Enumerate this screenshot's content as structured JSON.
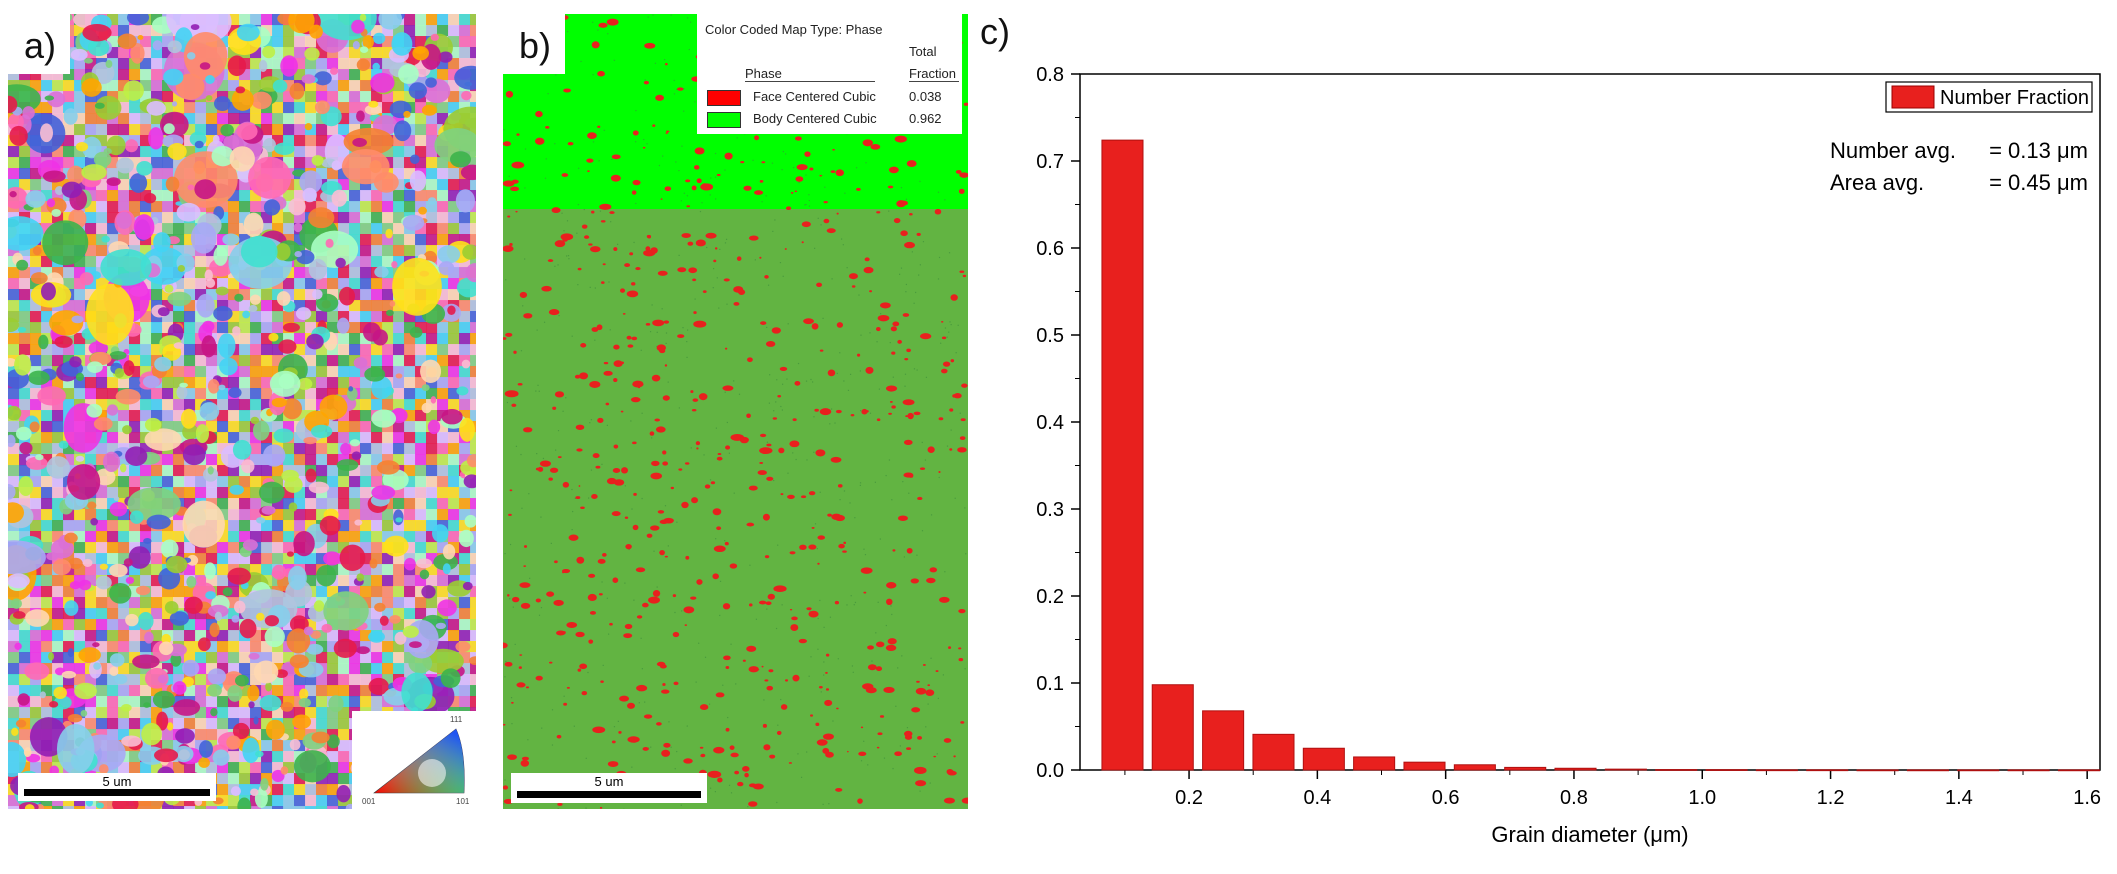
{
  "panels": {
    "a": {
      "letter": "a)",
      "scalebar_label": "5 um",
      "ipf_labels": {
        "top": "111",
        "left": "001",
        "right": "101"
      },
      "grain_palette": [
        "#e6194b",
        "#f58231",
        "#ffe119",
        "#bfef45",
        "#3cb44b",
        "#42d4f4",
        "#4363d8",
        "#911eb4",
        "#f032e6",
        "#fabed4",
        "#ffd8b1",
        "#aaffc3",
        "#dcbeff",
        "#a9a9f5",
        "#ff8c69",
        "#7fd17f",
        "#ff69b4",
        "#87ceeb",
        "#ffa500",
        "#9acd32",
        "#40e0d0",
        "#da70d6",
        "#b0c4de",
        "#c71585"
      ]
    },
    "b": {
      "letter": "b)",
      "scalebar_label": "5 um",
      "legend": {
        "title": "Color Coded Map Type: Phase",
        "col_phase": "Phase",
        "col_total": "Total",
        "col_fraction": "Fraction",
        "rows": [
          {
            "name": "Face Centered Cubic",
            "value": "0.038",
            "color": "#ff0000"
          },
          {
            "name": "Body Centered Cubic",
            "value": "0.962",
            "color": "#00ff00"
          }
        ]
      },
      "colors": {
        "bcc_bright": "#00ff00",
        "bcc_dim": "#62b442",
        "fcc": "#e8201e"
      }
    },
    "c": {
      "letter": "c)"
    }
  },
  "chart_data": {
    "type": "bar",
    "xlabel": "Grain diameter (μm)",
    "ylabel": "",
    "xlim": [
      0.03,
      1.62
    ],
    "ylim": [
      0.0,
      0.8
    ],
    "xticks": [
      "0.2",
      "0.4",
      "0.6",
      "0.8",
      "1.0",
      "1.2",
      "1.4",
      "1.6"
    ],
    "xtick_values": [
      0.2,
      0.4,
      0.6,
      0.8,
      1.0,
      1.2,
      1.4,
      1.6
    ],
    "yticks": [
      "0.0",
      "0.1",
      "0.2",
      "0.3",
      "0.4",
      "0.5",
      "0.6",
      "0.7",
      "0.8"
    ],
    "ytick_values": [
      0.0,
      0.1,
      0.2,
      0.3,
      0.4,
      0.5,
      0.6,
      0.7,
      0.8
    ],
    "bar_width": 0.064,
    "series": [
      {
        "name": "Number Fraction",
        "color": "#e8201e",
        "x": [
          0.0962,
          0.1746,
          0.2531,
          0.3316,
          0.4101,
          0.4885,
          0.567,
          0.6455,
          0.724,
          0.8024,
          0.8809,
          0.9594,
          1.0379,
          1.1163,
          1.1948,
          1.2733,
          1.3518,
          1.4302,
          1.5087,
          1.5872
        ],
        "values": [
          0.724,
          0.098,
          0.068,
          0.041,
          0.025,
          0.015,
          0.009,
          0.006,
          0.003,
          0.002,
          0.001,
          0.0005,
          0.0004,
          0.0002,
          0.0002,
          0.0001,
          0.0001,
          0.0001,
          0.0001,
          0.0001
        ]
      }
    ],
    "legend": {
      "position": "top-right",
      "label": "Number Fraction"
    },
    "annotations": [
      {
        "label": "Number avg.",
        "value": "= 0.13 μm"
      },
      {
        "label": "Area avg.",
        "value": "= 0.45 μm"
      }
    ]
  }
}
